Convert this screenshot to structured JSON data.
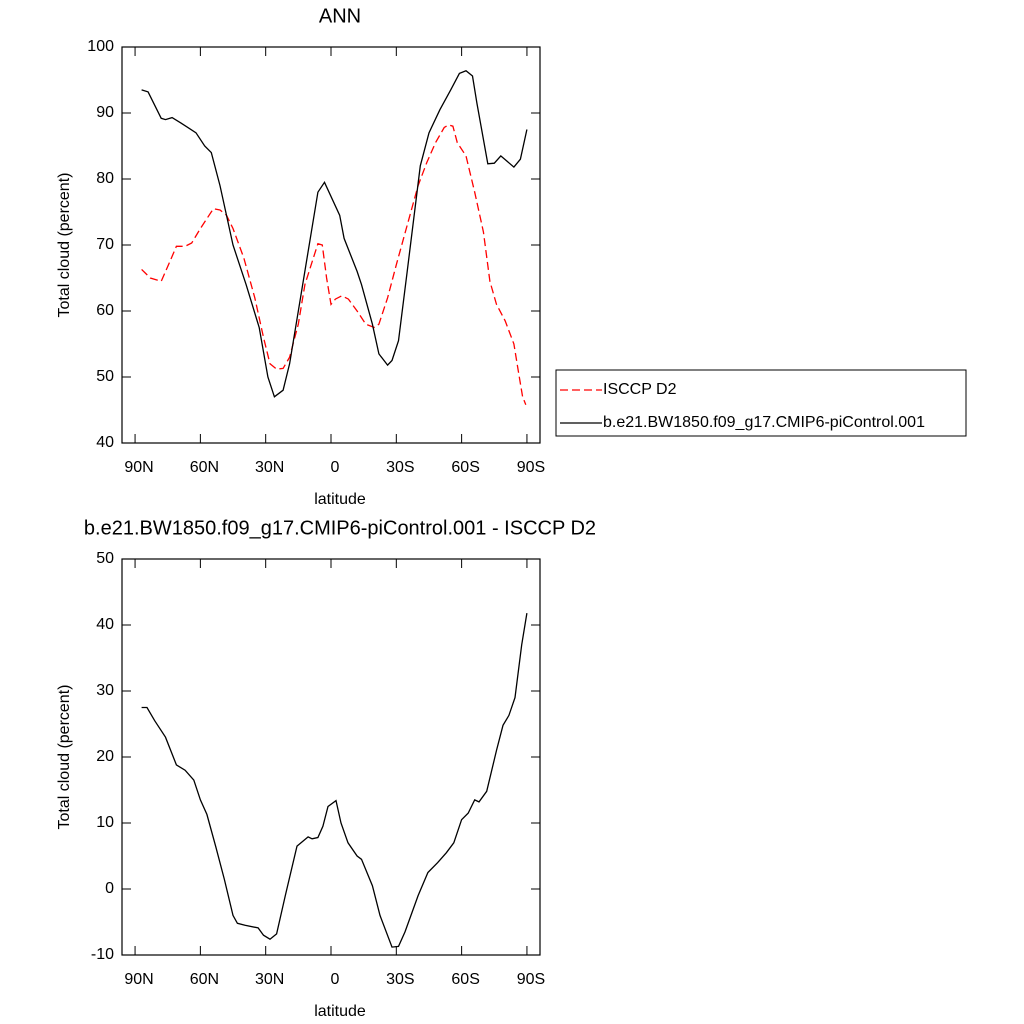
{
  "chart_data": [
    {
      "type": "line",
      "title": "ANN",
      "xlabel": "latitude",
      "ylabel": "Total cloud (percent)",
      "xlim": [
        96,
        -96
      ],
      "ylim": [
        40,
        100
      ],
      "xticks": [
        {
          "value": 90,
          "label": "90N"
        },
        {
          "value": 60,
          "label": "60N"
        },
        {
          "value": 30,
          "label": "30N"
        },
        0,
        {
          "value": -30,
          "label": "30S"
        },
        {
          "value": -60,
          "label": "60S"
        },
        {
          "value": -90,
          "label": "90S"
        }
      ],
      "yticks": [
        40,
        50,
        60,
        70,
        80,
        90,
        100
      ],
      "legend": "right",
      "series": [
        {
          "name": "ISCCP D2",
          "color": "#ff0000",
          "dash": true,
          "x": [
            87,
            83,
            78,
            74,
            71,
            67,
            64,
            60,
            57,
            54,
            51,
            48,
            45,
            40,
            35,
            31,
            28,
            25,
            22,
            19,
            15,
            12,
            6,
            4,
            2,
            0,
            -2,
            -5,
            -8,
            -12,
            -16,
            -20,
            -22,
            -26,
            -30,
            -35,
            -40,
            -44,
            -48,
            -52,
            -54,
            -56,
            -58,
            -62,
            -66,
            -70,
            -73,
            -76,
            -80,
            -84,
            -86,
            -88,
            -89.5
          ],
          "values": [
            66.3,
            65,
            64.5,
            67.5,
            69.8,
            69.8,
            70.3,
            72.5,
            74,
            75.5,
            75.3,
            74.5,
            72.5,
            68,
            62,
            56,
            52,
            51.2,
            51.3,
            53,
            58,
            64,
            70.2,
            70,
            65,
            61,
            61.8,
            62.3,
            61.8,
            60,
            58,
            57.5,
            58,
            62,
            67,
            73,
            79,
            82.5,
            85.5,
            87.8,
            88.2,
            88,
            85.5,
            83.5,
            78,
            72,
            64.5,
            61,
            58.5,
            55,
            51,
            47,
            45.8
          ]
        },
        {
          "name": "b.e21.BW1850.f09_g17.CMIP6-piControl.001",
          "color": "#000000",
          "dash": false,
          "x": [
            87,
            84,
            78,
            76,
            73,
            69,
            62,
            58,
            55,
            51,
            45,
            39,
            33,
            29,
            26,
            22,
            19,
            14,
            6,
            3,
            -4,
            -6,
            -12,
            -14,
            -19,
            -22,
            -26,
            -28,
            -31,
            -35,
            -41,
            -45,
            -50,
            -55,
            -59,
            -62,
            -65,
            -67,
            -72,
            -75,
            -78,
            -84,
            -87,
            -90
          ],
          "values": [
            93.5,
            93.2,
            89.2,
            89,
            89.3,
            88.5,
            87,
            85,
            84,
            79,
            70,
            64,
            57.5,
            50,
            47,
            48,
            52,
            62,
            78,
            79.5,
            74.5,
            71,
            66,
            64,
            58,
            53.5,
            51.8,
            52.5,
            55.5,
            66,
            82,
            87,
            90.5,
            93.5,
            96,
            96.4,
            95.6,
            91.5,
            82.3,
            82.4,
            83.5,
            81.8,
            83,
            87.5
          ]
        }
      ]
    },
    {
      "type": "line",
      "title": "b.e21.BW1850.f09_g17.CMIP6-piControl.001 - ISCCP D2",
      "xlabel": "latitude",
      "ylabel": "Total cloud (percent)",
      "xlim": [
        96,
        -96
      ],
      "ylim": [
        -10,
        50
      ],
      "xticks": [
        {
          "value": 90,
          "label": "90N"
        },
        {
          "value": 60,
          "label": "60N"
        },
        {
          "value": 30,
          "label": "30N"
        },
        0,
        {
          "value": -30,
          "label": "30S"
        },
        {
          "value": -60,
          "label": "60S"
        },
        {
          "value": -90,
          "label": "90S"
        }
      ],
      "yticks": [
        -10,
        0,
        10,
        20,
        30,
        40,
        50
      ],
      "series": [
        {
          "color": "#000000",
          "dash": false,
          "x": [
            87,
            84.5,
            81,
            76,
            71,
            67,
            63,
            60,
            57,
            53,
            49,
            45,
            43,
            39.5,
            33.5,
            31,
            28,
            25,
            21,
            15.6,
            10.5,
            8.7,
            6,
            3.7,
            1.4,
            -2.3,
            -4.6,
            -7.8,
            -12,
            -14,
            -19,
            -22.5,
            -28,
            -31,
            -34,
            -40,
            -44.5,
            -49,
            -53,
            -56.4,
            -60,
            -63,
            -66,
            -68,
            -71.5,
            -76,
            -79,
            -81.7,
            -84.5,
            -87.6,
            -90
          ],
          "values": [
            27.5,
            27.5,
            25.5,
            23,
            18.8,
            18,
            16.5,
            13.5,
            11.3,
            6.5,
            1.5,
            -4,
            -5.2,
            -5.5,
            -5.9,
            -7,
            -7.6,
            -6.8,
            -1,
            6.5,
            7.9,
            7.6,
            7.8,
            9.5,
            12.5,
            13.4,
            10,
            7,
            5,
            4.5,
            0.5,
            -4,
            -8.8,
            -8.7,
            -6.5,
            -1,
            2.5,
            4,
            5.5,
            7,
            10.5,
            11.5,
            13.5,
            13.2,
            14.8,
            21,
            24.8,
            26.3,
            29,
            37,
            41.8
          ]
        }
      ]
    }
  ]
}
